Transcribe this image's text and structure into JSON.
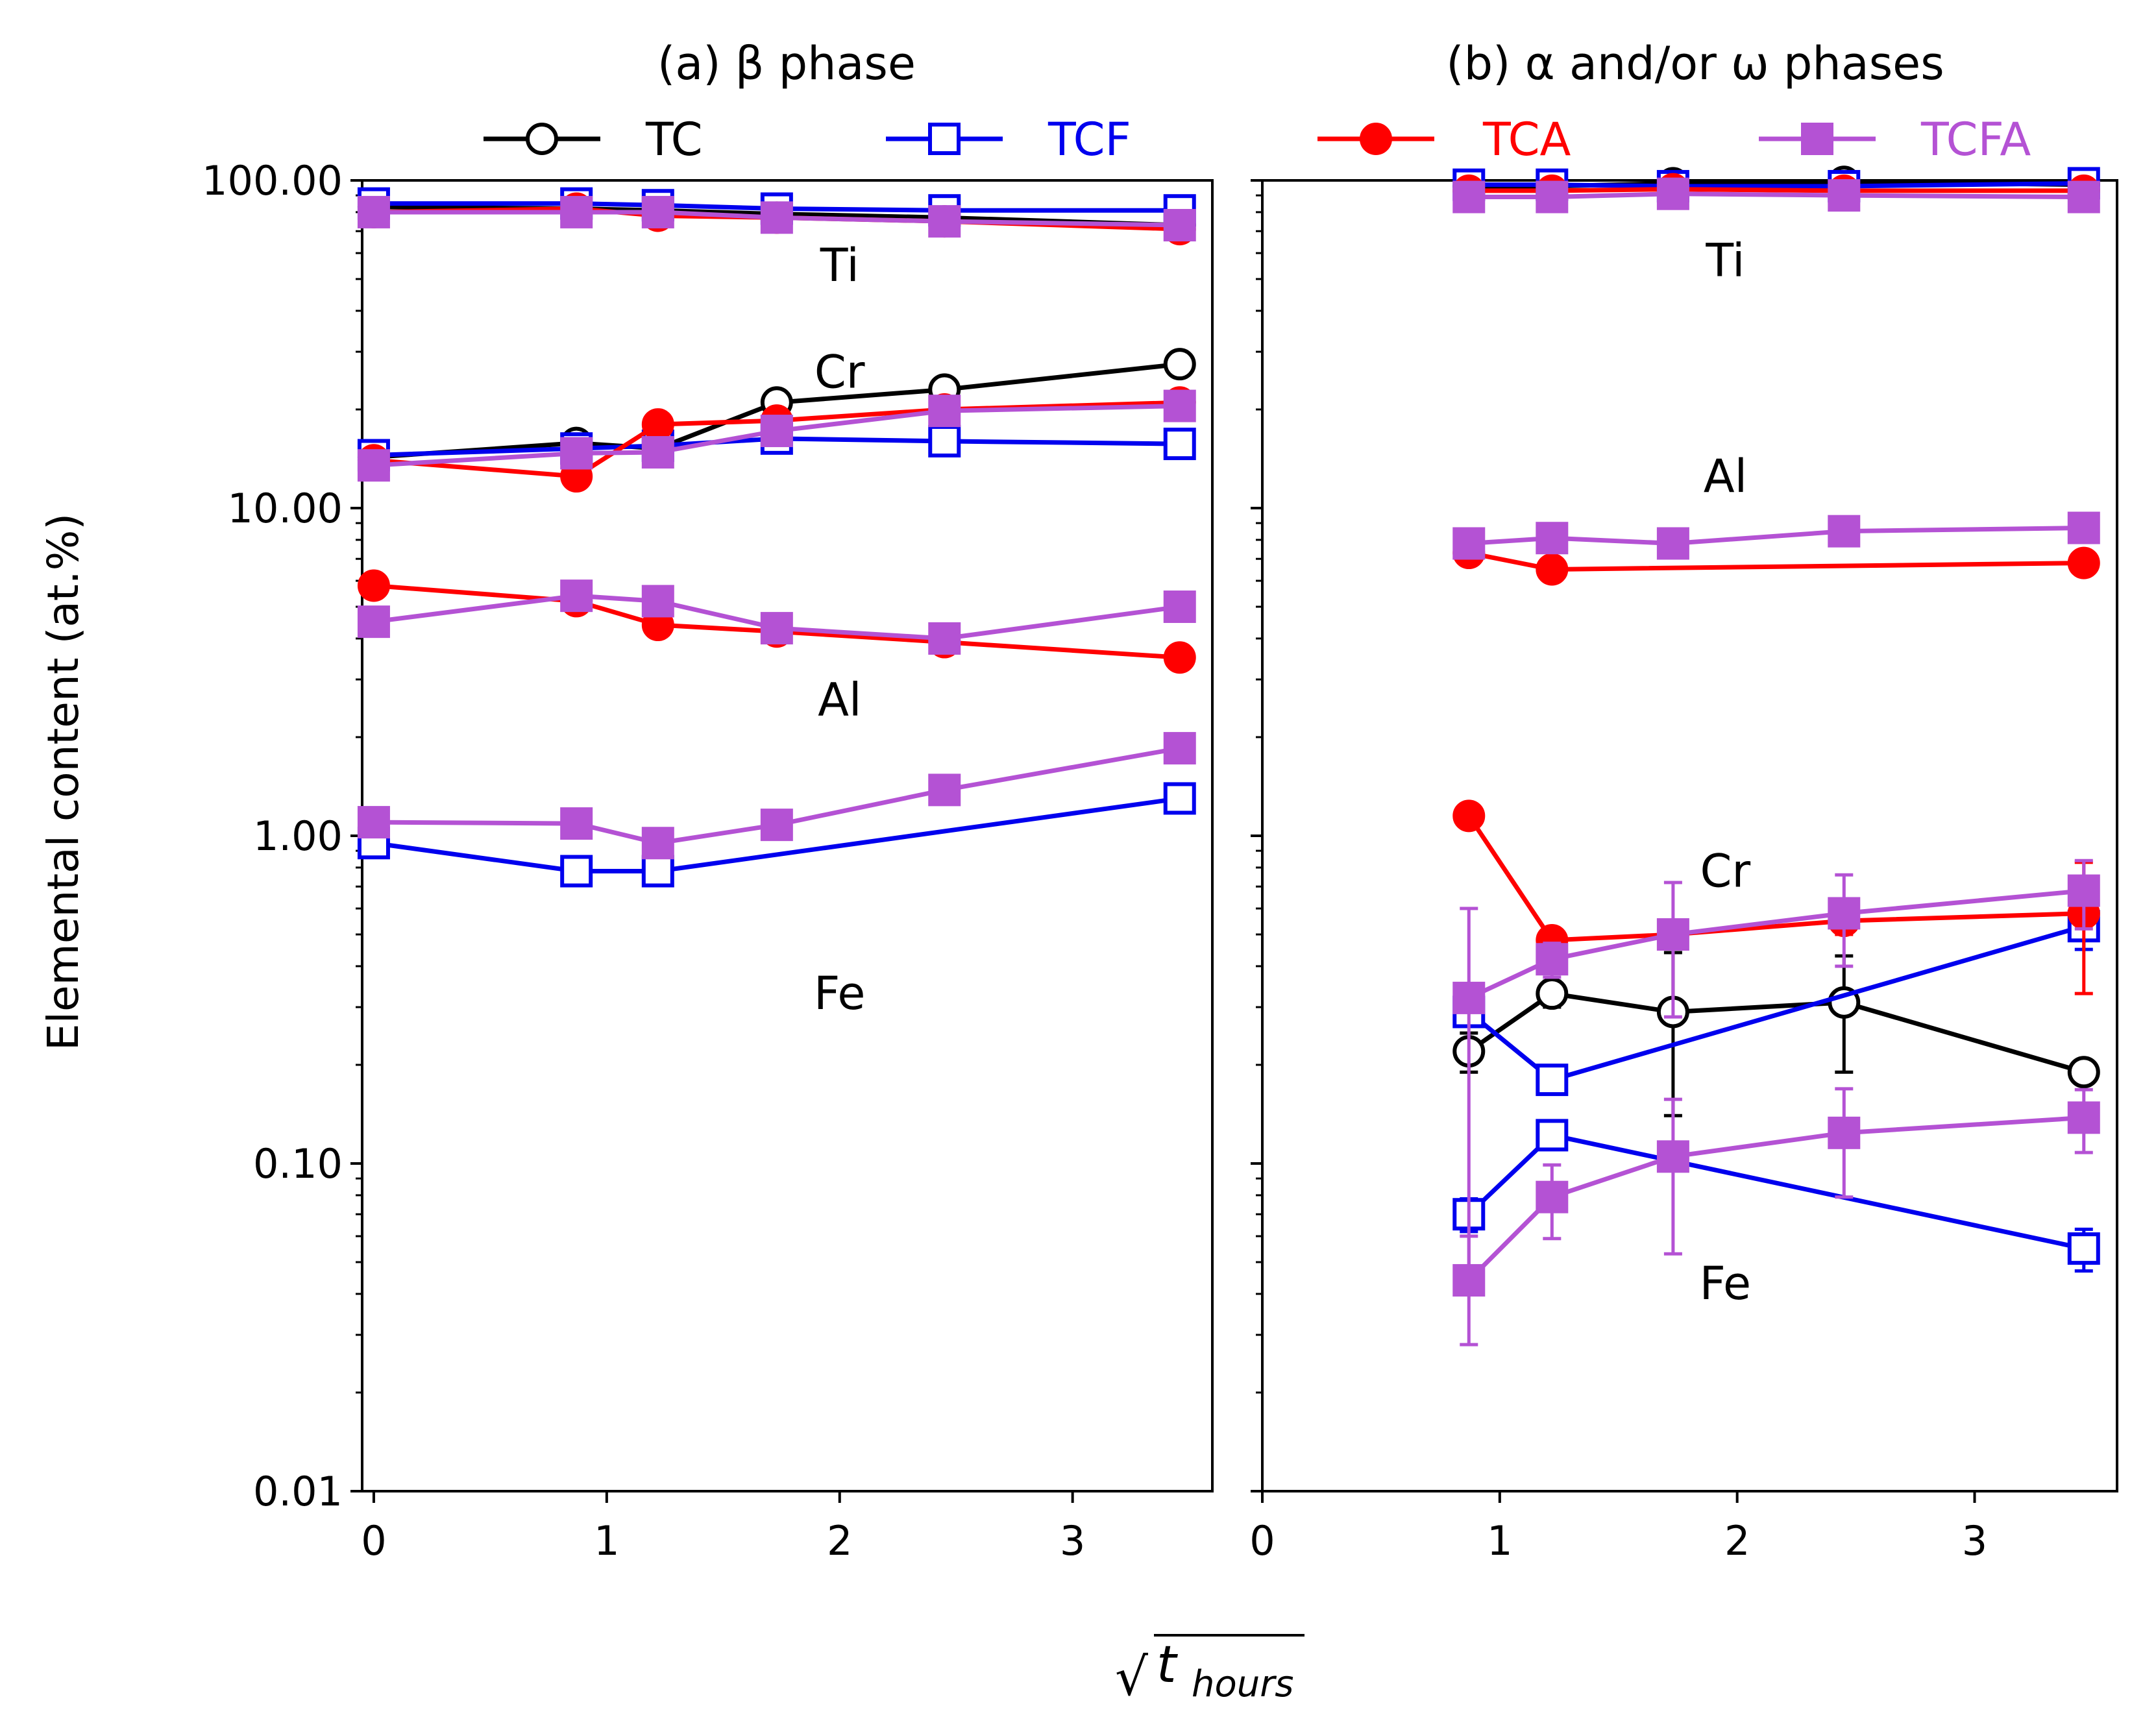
{
  "figure": {
    "ylabel": "Elemental content (at.%)",
    "xlabel": "√t_hours",
    "xlabel_base": "t",
    "xlabel_sub": "hours",
    "xlabel_radical": "√"
  },
  "legend": [
    {
      "name": "TC",
      "color": "#000000",
      "marker": "open-circle"
    },
    {
      "name": "TCF",
      "color": "#0000ee",
      "marker": "open-square"
    },
    {
      "name": "TCA",
      "color": "#ff0000",
      "marker": "filled-circle"
    },
    {
      "name": "TCFA",
      "color": "#b452d4",
      "marker": "filled-square"
    }
  ],
  "chart_data": [
    {
      "type": "line",
      "title": "(a) β phase",
      "xlabel": "√t_hours",
      "ylabel": "Elemental content (at.%)",
      "yscale": "log",
      "xlim": [
        -0.05,
        3.6
      ],
      "ylim": [
        0.01,
        100
      ],
      "xticks": [
        0,
        1,
        2,
        3
      ],
      "xtick_labels": [
        "0",
        "1",
        "2",
        "3"
      ],
      "yticks": [
        0.01,
        0.1,
        1,
        10,
        100
      ],
      "ytick_labels": [
        "0.01",
        "0.10",
        "1.00",
        "10.00",
        "100.00"
      ],
      "annotations": [
        {
          "text": "Ti",
          "x": 2.0,
          "y": 55
        },
        {
          "text": "Cr",
          "x": 2.0,
          "y": 26
        },
        {
          "text": "Al",
          "x": 2.0,
          "y": 2.6
        },
        {
          "text": "Fe",
          "x": 2.0,
          "y": 0.33
        }
      ],
      "series": [
        {
          "name": "TC",
          "element": "Ti",
          "x": [
            0,
            0.87,
            1.22,
            1.73,
            2.45,
            3.46
          ],
          "y": [
            83,
            82,
            81,
            79,
            77,
            73
          ]
        },
        {
          "name": "TC",
          "element": "Cr",
          "x": [
            0,
            0.87,
            1.22,
            1.73,
            2.45,
            3.46
          ],
          "y": [
            14.3,
            15.8,
            15.2,
            21,
            23,
            27.5
          ]
        },
        {
          "name": "TCF",
          "element": "Ti",
          "x": [
            0,
            0.87,
            1.22,
            1.73,
            2.45,
            3.46
          ],
          "y": [
            85,
            85,
            84,
            82,
            81,
            81
          ]
        },
        {
          "name": "TCF",
          "element": "Cr",
          "x": [
            0,
            0.87,
            1.22,
            1.73,
            2.45,
            3.46
          ],
          "y": [
            14.5,
            15.2,
            15.5,
            16.3,
            16,
            15.7
          ]
        },
        {
          "name": "TCF",
          "element": "Fe",
          "x": [
            0,
            0.87,
            1.22,
            3.46
          ],
          "y": [
            0.95,
            0.78,
            0.78,
            1.3
          ]
        },
        {
          "name": "TCA",
          "element": "Ti",
          "x": [
            0,
            0.87,
            1.22,
            1.73,
            2.45,
            3.46
          ],
          "y": [
            80,
            82,
            78,
            77,
            75,
            71
          ]
        },
        {
          "name": "TCA",
          "element": "Cr",
          "x": [
            0,
            0.87,
            1.22,
            1.73,
            2.45,
            3.46
          ],
          "y": [
            14,
            12.5,
            18,
            18.5,
            20,
            21
          ]
        },
        {
          "name": "TCA",
          "element": "Al",
          "x": [
            0,
            0.87,
            1.22,
            1.73,
            2.45,
            3.46
          ],
          "y": [
            5.8,
            5.2,
            4.4,
            4.2,
            3.9,
            3.5
          ]
        },
        {
          "name": "TCFA",
          "element": "Ti",
          "x": [
            0,
            0.87,
            1.22,
            1.73,
            2.45,
            3.46
          ],
          "y": [
            80,
            80,
            80,
            77,
            75,
            73
          ]
        },
        {
          "name": "TCFA",
          "element": "Cr",
          "x": [
            0,
            0.87,
            1.22,
            1.73,
            2.45,
            3.46
          ],
          "y": [
            13.5,
            14.7,
            14.8,
            17.2,
            19.8,
            20.5
          ]
        },
        {
          "name": "TCFA",
          "element": "Al",
          "x": [
            0,
            0.87,
            1.22,
            1.73,
            2.45,
            3.46
          ],
          "y": [
            4.5,
            5.4,
            5.2,
            4.3,
            4.0,
            5.0
          ]
        },
        {
          "name": "TCFA",
          "element": "Fe",
          "x": [
            0,
            0.87,
            1.22,
            1.73,
            2.45,
            3.46
          ],
          "y": [
            1.1,
            1.09,
            0.95,
            1.08,
            1.38,
            1.85
          ]
        }
      ]
    },
    {
      "type": "line",
      "title": "(b) α and/or ω phases",
      "xlabel": "√t_hours",
      "yscale": "log",
      "xlim": [
        0,
        3.6
      ],
      "ylim": [
        0.01,
        100
      ],
      "xticks": [
        0,
        1,
        2,
        3
      ],
      "xtick_labels": [
        "0",
        "1",
        "2",
        "3"
      ],
      "yticks": [
        0.01,
        0.1,
        1,
        10,
        100
      ],
      "ytick_labels": [],
      "annotations": [
        {
          "text": "Ti",
          "x": 1.95,
          "y": 57
        },
        {
          "text": "Al",
          "x": 1.95,
          "y": 12.5
        },
        {
          "text": "Cr",
          "x": 1.95,
          "y": 0.78
        },
        {
          "text": "Fe",
          "x": 1.95,
          "y": 0.043
        }
      ],
      "series": [
        {
          "name": "TC",
          "element": "Ti",
          "x": [
            0.87,
            1.22,
            1.73,
            2.45,
            3.46
          ],
          "y": [
            96,
            96,
            98,
            99,
            97
          ]
        },
        {
          "name": "TC",
          "element": "Cr",
          "x": [
            0.87,
            1.22,
            1.73,
            2.45,
            3.46
          ],
          "y": [
            0.22,
            0.33,
            0.29,
            0.31,
            0.19
          ],
          "yerr": [
            0.03,
            0.03,
            0.15,
            0.12,
            0.015
          ]
        },
        {
          "name": "TCF",
          "element": "Ti",
          "x": [
            0.87,
            1.22,
            1.73,
            2.45,
            3.46
          ],
          "y": [
            97,
            97,
            96,
            96,
            98
          ]
        },
        {
          "name": "TCF",
          "element": "Cr",
          "x": [
            0.87,
            1.22,
            3.46
          ],
          "y": [
            0.29,
            0.18,
            0.53
          ],
          "yerr": [
            0.02,
            0.015,
            0.08
          ]
        },
        {
          "name": "TCF",
          "element": "Fe",
          "x": [
            0.87,
            1.22,
            3.46
          ],
          "y": [
            0.07,
            0.122,
            0.055
          ],
          "yerr": [
            0.008,
            0.006,
            0.008
          ]
        },
        {
          "name": "TCA",
          "element": "Ti",
          "x": [
            0.87,
            1.22,
            1.73,
            2.45,
            3.46
          ],
          "y": [
            93,
            93,
            94,
            93,
            93
          ]
        },
        {
          "name": "TCA",
          "element": "Al",
          "x": [
            0.87,
            1.22,
            3.46
          ],
          "y": [
            7.3,
            6.5,
            6.8
          ]
        },
        {
          "name": "TCA",
          "element": "Cr",
          "x": [
            0.87,
            1.22,
            1.73,
            2.45,
            3.46
          ],
          "y": [
            1.15,
            0.48,
            0.5,
            0.55,
            0.58
          ],
          "yerr": [
            0.05,
            0.03,
            0.03,
            0.05,
            0.25
          ]
        },
        {
          "name": "TCFA",
          "element": "Ti",
          "x": [
            0.87,
            1.22,
            1.73,
            2.45,
            3.46
          ],
          "y": [
            89,
            89,
            91,
            90,
            89
          ]
        },
        {
          "name": "TCFA",
          "element": "Al",
          "x": [
            0.87,
            1.22,
            1.73,
            2.45,
            3.46
          ],
          "y": [
            7.8,
            8.1,
            7.8,
            8.5,
            8.7
          ]
        },
        {
          "name": "TCFA",
          "element": "Cr",
          "x": [
            0.87,
            1.22,
            1.73,
            2.45,
            3.46
          ],
          "y": [
            0.32,
            0.42,
            0.5,
            0.58,
            0.68
          ],
          "yerr": [
            0.28,
            0.05,
            0.22,
            0.18,
            0.16
          ]
        },
        {
          "name": "TCFA",
          "element": "Fe",
          "x": [
            0.87,
            1.22,
            1.73,
            2.45,
            3.46
          ],
          "y": [
            0.044,
            0.079,
            0.105,
            0.124,
            0.138
          ],
          "yerr": [
            0.016,
            0.02,
            0.052,
            0.045,
            0.03
          ]
        }
      ]
    }
  ]
}
